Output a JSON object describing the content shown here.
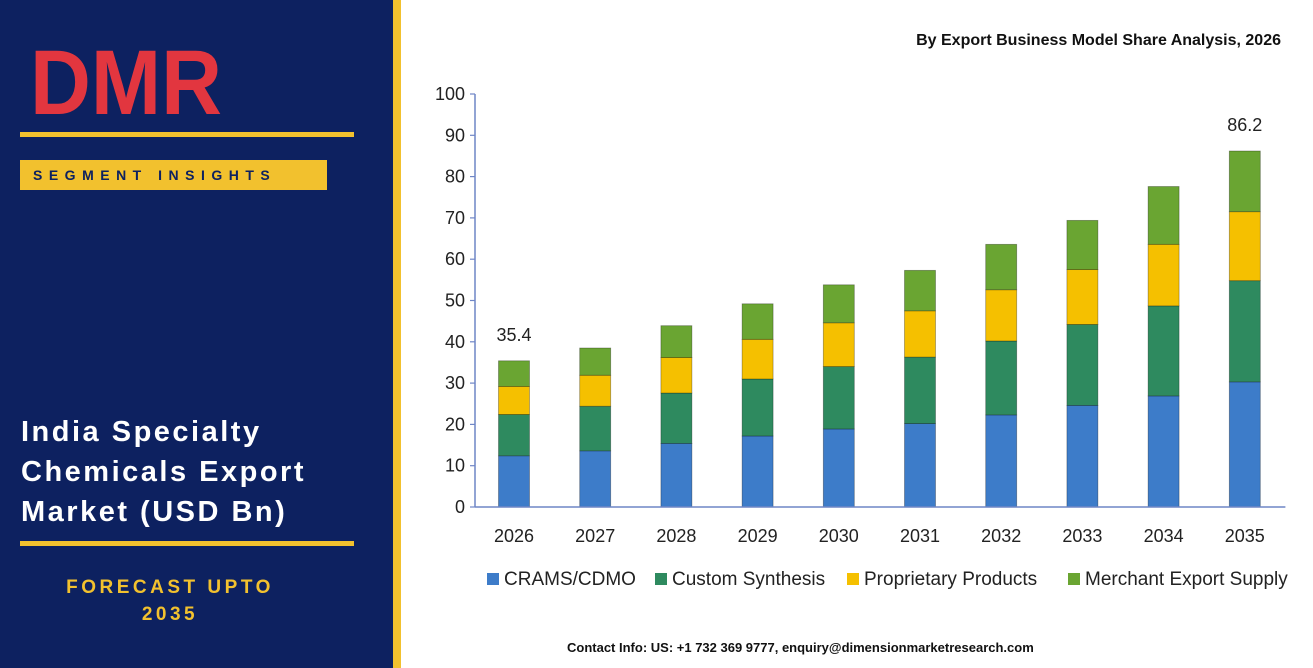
{
  "brand": {
    "logo_text": "DMR",
    "segment_badge": "SEGMENT INSIGHTS"
  },
  "market_title_lines": [
    "India Specialty",
    "Chemicals Export",
    "Market (USD Bn)"
  ],
  "forecast_lines": [
    "FORECAST UPTO",
    "2035"
  ],
  "chart_heading": "By Export Business Model Share Analysis, 2026",
  "contact": "Contact Info: US: +1 732 369 9777, enquiry@dimensionmarketresearch.com",
  "colors": {
    "panel": "#0d2160",
    "accent": "#f2c12e",
    "logo_red": "#e2363f",
    "logo_gray": "#a9b3b7"
  },
  "chart_data": {
    "type": "bar",
    "stacked": true,
    "categories": [
      "2026",
      "2027",
      "2028",
      "2029",
      "2030",
      "2031",
      "2032",
      "2033",
      "2034",
      "2035"
    ],
    "series": [
      {
        "name": "CRAMS/CDMO",
        "color": "#3d7cc9",
        "values": [
          12.4,
          13.6,
          15.4,
          17.2,
          18.9,
          20.2,
          22.3,
          24.6,
          26.9,
          30.3
        ]
      },
      {
        "name": "Custom Synthesis",
        "color": "#2e8a5f",
        "values": [
          10.0,
          10.8,
          12.2,
          13.8,
          15.1,
          16.1,
          17.9,
          19.6,
          21.8,
          24.5
        ]
      },
      {
        "name": "Proprietary Products",
        "color": "#f5c000",
        "values": [
          6.8,
          7.5,
          8.6,
          9.6,
          10.6,
          11.2,
          12.4,
          13.3,
          14.9,
          16.7
        ]
      },
      {
        "name": "Merchant Export Supply",
        "color": "#6aa532",
        "values": [
          6.2,
          6.6,
          7.7,
          8.6,
          9.2,
          9.8,
          11.0,
          11.9,
          14.0,
          14.7
        ]
      }
    ],
    "data_labels": [
      {
        "category": "2026",
        "text": "35.4"
      },
      {
        "category": "2035",
        "text": "86.2"
      }
    ],
    "ylim": [
      0,
      100
    ],
    "yticks": [
      0,
      10,
      20,
      30,
      40,
      50,
      60,
      70,
      80,
      90,
      100
    ],
    "grid": false,
    "legend": "bottom"
  }
}
